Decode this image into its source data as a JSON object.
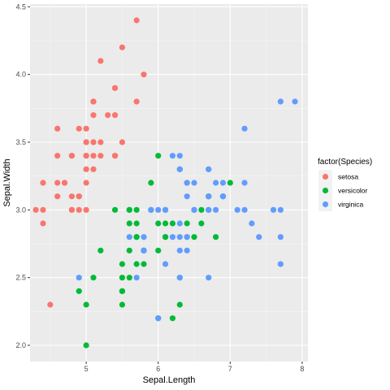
{
  "chart_data": {
    "type": "scatter",
    "title": "",
    "xlabel": "Sepal.Length",
    "ylabel": "Sepal.Width",
    "xlim": [
      4.22,
      8.08
    ],
    "ylim": [
      1.88,
      4.52
    ],
    "xticks": [
      5,
      6,
      7,
      8
    ],
    "yticks": [
      2.0,
      2.5,
      3.0,
      3.5,
      4.0,
      4.5
    ],
    "xtick_labels": [
      "5",
      "6",
      "7",
      "8"
    ],
    "ytick_labels": [
      "2.0",
      "2.5",
      "3.0",
      "3.5",
      "4.0",
      "4.5"
    ],
    "grid": true,
    "legend": {
      "title": "factor(Species)",
      "position": "right"
    },
    "series": [
      {
        "name": "setosa",
        "color": "#F8766D",
        "points": [
          [
            5.1,
            3.5
          ],
          [
            4.9,
            3.0
          ],
          [
            4.7,
            3.2
          ],
          [
            4.6,
            3.1
          ],
          [
            5.0,
            3.6
          ],
          [
            5.4,
            3.9
          ],
          [
            4.6,
            3.4
          ],
          [
            5.0,
            3.4
          ],
          [
            4.4,
            2.9
          ],
          [
            4.9,
            3.1
          ],
          [
            5.4,
            3.7
          ],
          [
            4.8,
            3.4
          ],
          [
            4.8,
            3.0
          ],
          [
            4.3,
            3.0
          ],
          [
            5.8,
            4.0
          ],
          [
            5.7,
            4.4
          ],
          [
            5.4,
            3.9
          ],
          [
            5.1,
            3.5
          ],
          [
            5.7,
            3.8
          ],
          [
            5.1,
            3.8
          ],
          [
            5.4,
            3.4
          ],
          [
            5.1,
            3.7
          ],
          [
            4.6,
            3.6
          ],
          [
            5.1,
            3.3
          ],
          [
            4.8,
            3.4
          ],
          [
            5.0,
            3.0
          ],
          [
            5.0,
            3.4
          ],
          [
            5.2,
            3.5
          ],
          [
            5.2,
            3.4
          ],
          [
            4.7,
            3.2
          ],
          [
            4.8,
            3.1
          ],
          [
            5.4,
            3.4
          ],
          [
            5.2,
            4.1
          ],
          [
            5.5,
            4.2
          ],
          [
            4.9,
            3.1
          ],
          [
            5.0,
            3.2
          ],
          [
            5.5,
            3.5
          ],
          [
            4.9,
            3.6
          ],
          [
            4.4,
            3.0
          ],
          [
            5.1,
            3.4
          ],
          [
            5.0,
            3.5
          ],
          [
            4.5,
            2.3
          ],
          [
            4.4,
            3.2
          ],
          [
            5.0,
            3.5
          ],
          [
            5.1,
            3.8
          ],
          [
            4.8,
            3.0
          ],
          [
            5.1,
            3.8
          ],
          [
            4.6,
            3.2
          ],
          [
            5.3,
            3.7
          ],
          [
            5.0,
            3.3
          ]
        ]
      },
      {
        "name": "versicolor",
        "color": "#00BA38",
        "points": [
          [
            7.0,
            3.2
          ],
          [
            6.4,
            3.2
          ],
          [
            6.9,
            3.1
          ],
          [
            5.5,
            2.3
          ],
          [
            6.5,
            2.8
          ],
          [
            5.7,
            2.8
          ],
          [
            6.3,
            3.3
          ],
          [
            4.9,
            2.4
          ],
          [
            6.6,
            2.9
          ],
          [
            5.2,
            2.7
          ],
          [
            5.0,
            2.0
          ],
          [
            5.9,
            3.0
          ],
          [
            6.0,
            2.2
          ],
          [
            6.1,
            2.9
          ],
          [
            5.6,
            2.9
          ],
          [
            6.7,
            3.1
          ],
          [
            5.6,
            3.0
          ],
          [
            5.8,
            2.7
          ],
          [
            6.2,
            2.2
          ],
          [
            5.6,
            2.5
          ],
          [
            5.9,
            3.2
          ],
          [
            6.1,
            2.8
          ],
          [
            6.3,
            2.5
          ],
          [
            6.1,
            2.8
          ],
          [
            6.4,
            2.9
          ],
          [
            6.6,
            3.0
          ],
          [
            6.8,
            2.8
          ],
          [
            6.7,
            3.0
          ],
          [
            6.0,
            2.9
          ],
          [
            5.7,
            2.6
          ],
          [
            5.5,
            2.4
          ],
          [
            5.5,
            2.4
          ],
          [
            5.8,
            2.7
          ],
          [
            6.0,
            2.7
          ],
          [
            5.4,
            3.0
          ],
          [
            6.0,
            3.4
          ],
          [
            6.7,
            3.1
          ],
          [
            6.3,
            2.3
          ],
          [
            5.6,
            3.0
          ],
          [
            5.5,
            2.5
          ],
          [
            5.5,
            2.6
          ],
          [
            6.1,
            3.0
          ],
          [
            5.8,
            2.6
          ],
          [
            5.0,
            2.3
          ],
          [
            5.6,
            2.7
          ],
          [
            5.7,
            3.0
          ],
          [
            5.7,
            2.9
          ],
          [
            6.2,
            2.9
          ],
          [
            5.1,
            2.5
          ],
          [
            5.7,
            2.8
          ]
        ]
      },
      {
        "name": "virginica",
        "color": "#619CFF",
        "points": [
          [
            6.3,
            3.3
          ],
          [
            5.8,
            2.7
          ],
          [
            7.1,
            3.0
          ],
          [
            6.3,
            2.9
          ],
          [
            6.5,
            3.0
          ],
          [
            7.6,
            3.0
          ],
          [
            4.9,
            2.5
          ],
          [
            7.3,
            2.9
          ],
          [
            6.7,
            2.5
          ],
          [
            7.2,
            3.6
          ],
          [
            6.5,
            3.2
          ],
          [
            6.4,
            2.7
          ],
          [
            6.8,
            3.0
          ],
          [
            5.7,
            2.5
          ],
          [
            5.8,
            2.8
          ],
          [
            6.4,
            3.2
          ],
          [
            6.5,
            3.0
          ],
          [
            7.7,
            3.8
          ],
          [
            7.7,
            2.6
          ],
          [
            6.0,
            2.2
          ],
          [
            6.9,
            3.2
          ],
          [
            5.6,
            2.8
          ],
          [
            7.7,
            2.8
          ],
          [
            6.3,
            2.7
          ],
          [
            6.7,
            3.3
          ],
          [
            7.2,
            3.2
          ],
          [
            6.2,
            2.8
          ],
          [
            6.1,
            3.0
          ],
          [
            6.4,
            2.8
          ],
          [
            7.2,
            3.0
          ],
          [
            7.4,
            2.8
          ],
          [
            7.9,
            3.8
          ],
          [
            6.4,
            2.8
          ],
          [
            6.3,
            2.8
          ],
          [
            6.1,
            2.6
          ],
          [
            7.7,
            3.0
          ],
          [
            6.3,
            3.4
          ],
          [
            6.4,
            3.1
          ],
          [
            6.0,
            3.0
          ],
          [
            6.9,
            3.1
          ],
          [
            6.7,
            3.1
          ],
          [
            6.9,
            3.1
          ],
          [
            5.8,
            2.7
          ],
          [
            6.8,
            3.2
          ],
          [
            6.7,
            3.3
          ],
          [
            6.7,
            3.0
          ],
          [
            6.3,
            2.5
          ],
          [
            6.5,
            3.0
          ],
          [
            6.2,
            3.4
          ],
          [
            5.9,
            3.0
          ]
        ]
      }
    ]
  }
}
